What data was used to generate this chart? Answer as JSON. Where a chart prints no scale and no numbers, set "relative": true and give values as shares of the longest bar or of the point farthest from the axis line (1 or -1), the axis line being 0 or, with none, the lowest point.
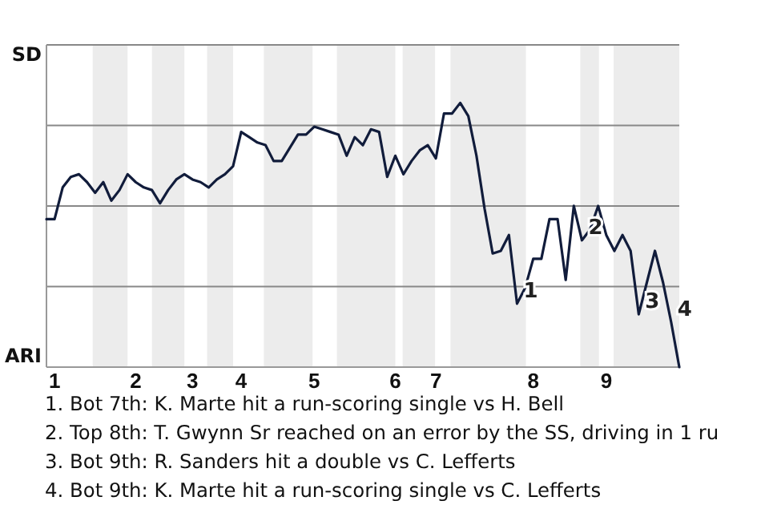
{
  "chart_data": {
    "type": "line",
    "relative": true,
    "categories": [
      null,
      "1",
      null,
      null,
      null,
      null,
      null,
      null,
      null,
      null,
      null,
      "2",
      null,
      null,
      null,
      null,
      null,
      null,
      "3",
      null,
      null,
      null,
      null,
      null,
      "4",
      null,
      null,
      null,
      null,
      null,
      null,
      null,
      null,
      "5",
      null,
      null,
      null,
      null,
      null,
      null,
      null,
      null,
      null,
      "6",
      null,
      null,
      null,
      null,
      "7",
      null,
      null,
      null,
      null,
      null,
      null,
      null,
      null,
      null,
      null,
      null,
      "8",
      null,
      null,
      null,
      null,
      null,
      null,
      null,
      null,
      "9",
      null,
      null,
      null,
      null,
      null,
      null,
      null,
      null,
      null
    ],
    "series": [
      {
        "color": "#111c3b",
        "values": [
          0.56,
          0.56,
          0.68,
          0.72,
          0.73,
          0.7,
          0.66,
          0.7,
          0.63,
          0.67,
          0.73,
          0.7,
          0.68,
          0.67,
          0.62,
          0.67,
          0.71,
          0.73,
          0.71,
          0.7,
          0.68,
          0.71,
          0.73,
          0.76,
          0.89,
          0.87,
          0.85,
          0.84,
          0.78,
          0.78,
          0.83,
          0.88,
          0.88,
          0.91,
          0.9,
          0.89,
          0.88,
          0.8,
          0.87,
          0.84,
          0.9,
          0.89,
          0.72,
          0.8,
          0.73,
          0.78,
          0.82,
          0.84,
          0.79,
          0.96,
          0.96,
          1,
          0.95,
          0.8,
          0.6,
          0.43,
          0.44,
          0.5,
          0.24,
          0.3,
          0.41,
          0.41,
          0.56,
          0.56,
          0.33,
          0.61,
          0.48,
          0.52,
          0.61,
          0.5,
          0.44,
          0.5,
          0.44,
          0.2,
          0.32,
          0.44,
          0.32,
          0.17,
          0
        ]
      }
    ],
    "grid": "y",
    "annotations": [
      "1",
      "2",
      "3",
      "4",
      "SD",
      "ARI",
      "1. Bot 7th: K. Marte hit a run-scoring single vs H. Bell",
      "2. Top 8th: T. Gwynn Sr reached on an error by the SS, driving in 1 ru",
      "3. Bot 9th: R. Sanders hit a double vs C. Lefferts",
      "4. Bot 9th: K. Marte hit a run-scoring single vs C. Lefferts"
    ]
  }
}
